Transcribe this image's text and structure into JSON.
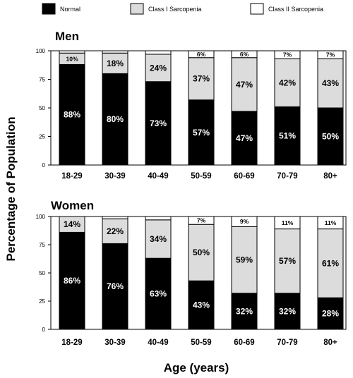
{
  "chart_data": {
    "type": "bar",
    "stacked": true,
    "legend_position": "top",
    "ylabel": "Percentage of Population",
    "xlabel": "Age (years)",
    "categories": [
      "18-29",
      "30-39",
      "40-49",
      "50-59",
      "60-69",
      "70-79",
      "80+"
    ],
    "series_names": [
      "Normal",
      "Class I Sarcopenia",
      "Class II Sarcopenia"
    ],
    "colors": {
      "Normal": "#000000",
      "Class I Sarcopenia": "#dcdcdc",
      "Class II Sarcopenia": "#ffffff"
    },
    "y_ticks": [
      "0",
      "25",
      "50",
      "75",
      "100"
    ],
    "ylim": [
      0,
      100
    ],
    "panels": [
      {
        "title": "Men",
        "series": [
          {
            "name": "Normal",
            "values": [
              88,
              80,
              73,
              57,
              47,
              51,
              50
            ],
            "labels": [
              "88%",
              "80%",
              "73%",
              "57%",
              "47%",
              "51%",
              "50%"
            ]
          },
          {
            "name": "Class I Sarcopenia",
            "values": [
              10,
              18,
              24,
              37,
              47,
              42,
              43
            ],
            "labels": [
              "10%",
              "18%",
              "24%",
              "37%",
              "47%",
              "42%",
              "43%"
            ]
          },
          {
            "name": "Class II Sarcopenia",
            "values": [
              2,
              2,
              3,
              6,
              6,
              7,
              7
            ],
            "labels": [
              "",
              "",
              "",
              "6%",
              "6%",
              "7%",
              "7%"
            ]
          }
        ]
      },
      {
        "title": "Women",
        "series": [
          {
            "name": "Normal",
            "values": [
              86,
              76,
              63,
              43,
              32,
              32,
              28
            ],
            "labels": [
              "86%",
              "76%",
              "63%",
              "43%",
              "32%",
              "32%",
              "28%"
            ]
          },
          {
            "name": "Class I Sarcopenia",
            "values": [
              14,
              22,
              34,
              50,
              59,
              57,
              61
            ],
            "labels": [
              "14%",
              "22%",
              "34%",
              "50%",
              "59%",
              "57%",
              "61%"
            ]
          },
          {
            "name": "Class II Sarcopenia",
            "values": [
              0,
              2,
              3,
              7,
              9,
              11,
              11
            ],
            "labels": [
              "",
              "",
              "",
              "7%",
              "9%",
              "11%",
              "11%"
            ]
          }
        ]
      }
    ]
  }
}
